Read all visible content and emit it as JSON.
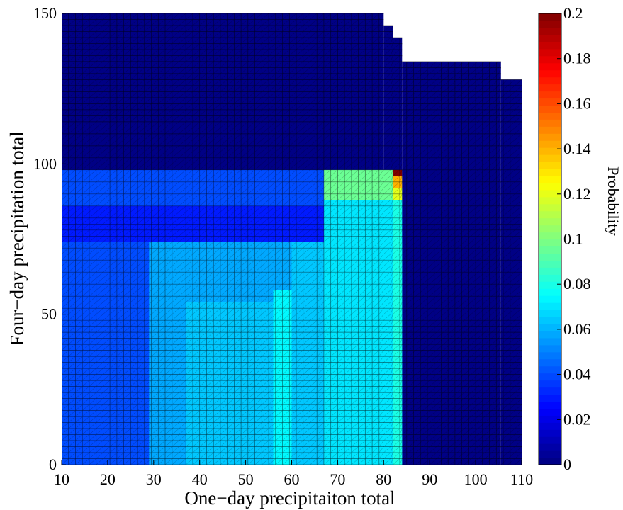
{
  "chart_data": {
    "type": "heatmap",
    "title": "",
    "xlabel": "One−day precipitaiton total",
    "ylabel": "Four−day precipitation total",
    "xlim": [
      10,
      110
    ],
    "ylim": [
      0,
      150
    ],
    "xticks": [
      "10",
      "20",
      "30",
      "40",
      "50",
      "60",
      "70",
      "80",
      "90",
      "100",
      "110"
    ],
    "yticks": [
      "0",
      "50",
      "100",
      "150"
    ],
    "colorbar": {
      "label": "Probability",
      "range": [
        0,
        0.2
      ],
      "ticks": [
        "0",
        "0.02",
        "0.04",
        "0.06",
        "0.08",
        "0.1",
        "0.12",
        "0.14",
        "0.16",
        "0.18",
        "0.2"
      ],
      "colormap": "jet"
    },
    "grid_step": {
      "x": 1.5,
      "y": 2
    },
    "background_value": 0.001,
    "regions": [
      {
        "x": [
          10,
          84
        ],
        "y": [
          0,
          98
        ],
        "value": 0.04
      },
      {
        "x": [
          10,
          84
        ],
        "y": [
          74,
          86
        ],
        "value": 0.03
      },
      {
        "x": [
          29,
          84
        ],
        "y": [
          0,
          74
        ],
        "value": 0.058
      },
      {
        "x": [
          37,
          56
        ],
        "y": [
          0,
          54
        ],
        "value": 0.064
      },
      {
        "x": [
          56,
          60
        ],
        "y": [
          0,
          58
        ],
        "value": 0.074
      },
      {
        "x": [
          60,
          67
        ],
        "y": [
          0,
          74
        ],
        "value": 0.064
      },
      {
        "x": [
          67,
          82
        ],
        "y": [
          0,
          88
        ],
        "value": 0.07
      },
      {
        "x": [
          67,
          82
        ],
        "y": [
          88,
          98
        ],
        "value": 0.096
      },
      {
        "x": [
          82,
          84
        ],
        "y": [
          0,
          88
        ],
        "value": 0.08
      },
      {
        "x": [
          82,
          84
        ],
        "y": [
          88,
          92
        ],
        "value": 0.12
      },
      {
        "x": [
          82,
          84
        ],
        "y": [
          92,
          96
        ],
        "value": 0.14
      },
      {
        "x": [
          82,
          84
        ],
        "y": [
          96,
          98
        ],
        "value": 0.2
      }
    ],
    "boundary": [
      {
        "x": [
          10,
          80
        ],
        "ymax": 150
      },
      {
        "x": [
          80,
          82
        ],
        "ymax": 146
      },
      {
        "x": [
          82,
          84
        ],
        "ymax": 142
      },
      {
        "x": [
          84,
          105.5
        ],
        "ymax": 134
      },
      {
        "x": [
          105.5,
          110
        ],
        "ymax": 128
      }
    ]
  }
}
